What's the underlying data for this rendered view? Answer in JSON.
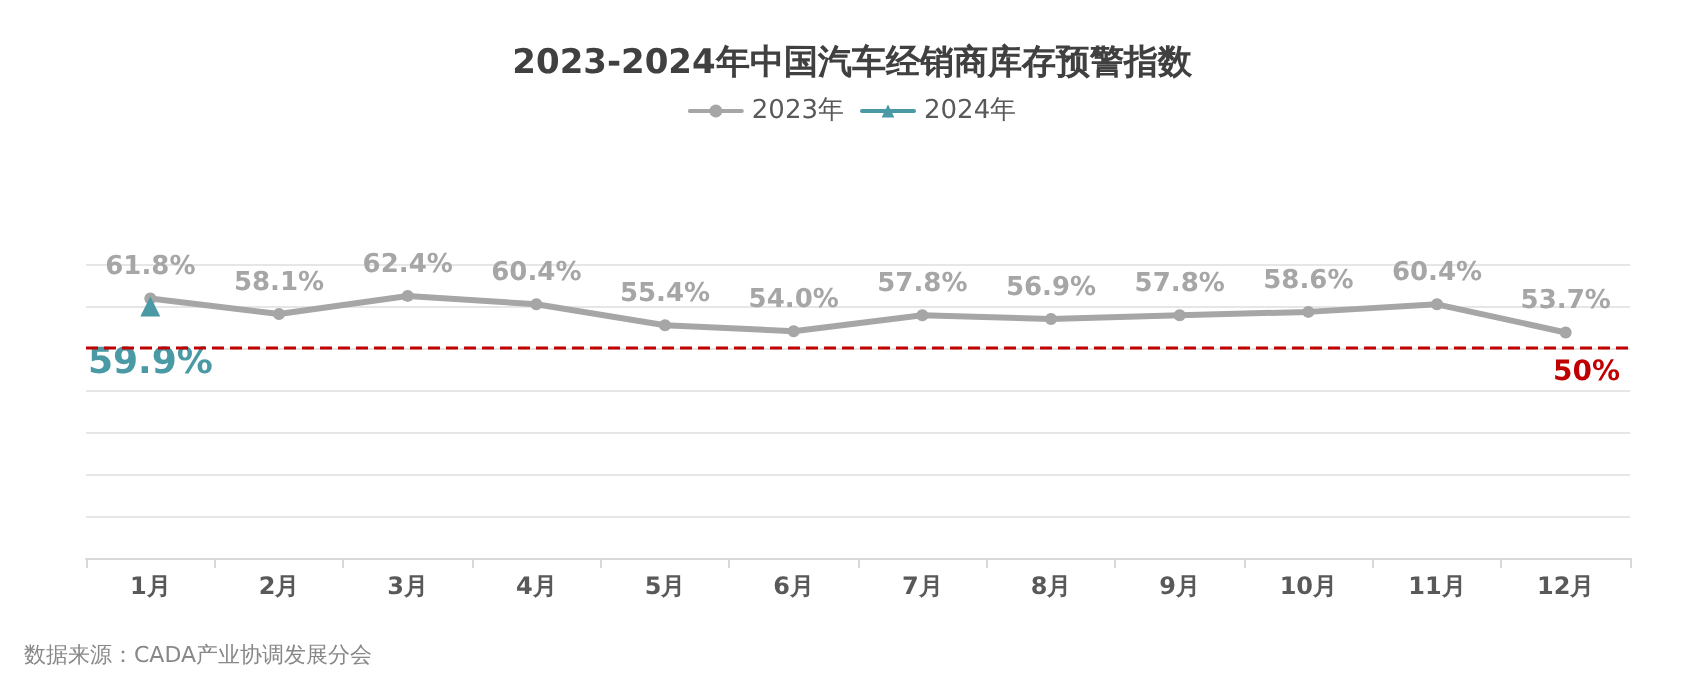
{
  "chart_data": {
    "type": "line",
    "title": "2023-2024年中国汽车经销商库存预警指数",
    "categories": [
      "1月",
      "2月",
      "3月",
      "4月",
      "5月",
      "6月",
      "7月",
      "8月",
      "9月",
      "10月",
      "11月",
      "12月"
    ],
    "series": [
      {
        "name": "2023年",
        "color": "#a6a6a6",
        "marker": "circle",
        "values": [
          61.8,
          58.1,
          62.4,
          60.4,
          55.4,
          54.0,
          57.8,
          56.9,
          57.8,
          58.6,
          60.4,
          53.7
        ],
        "value_labels": [
          "61.8%",
          "58.1%",
          "62.4%",
          "60.4%",
          "55.4%",
          "54.0%",
          "57.8%",
          "56.9%",
          "57.8%",
          "58.6%",
          "60.4%",
          "53.7%"
        ]
      },
      {
        "name": "2024年",
        "color": "#4a9aa5",
        "marker": "triangle",
        "values": [
          59.9,
          null,
          null,
          null,
          null,
          null,
          null,
          null,
          null,
          null,
          null,
          null
        ],
        "value_labels": [
          "59.9%",
          null,
          null,
          null,
          null,
          null,
          null,
          null,
          null,
          null,
          null,
          null
        ]
      }
    ],
    "ylim": [
      0,
      70
    ],
    "yticks": [
      {
        "value": 0,
        "label": null
      },
      {
        "value": 10,
        "label": null
      },
      {
        "value": 20,
        "label": null
      },
      {
        "value": 30,
        "label": null
      },
      {
        "value": 40,
        "label": null
      },
      {
        "value": 50,
        "label": null
      },
      {
        "value": 60,
        "label": null
      },
      {
        "value": 70,
        "label": null
      }
    ],
    "tick_labels": "x",
    "grid": "y",
    "legend": "top",
    "ref_lines": [
      {
        "axis": "y",
        "value": 50,
        "label": "50%",
        "color": "#c00000",
        "line_style": "dashed"
      }
    ],
    "annotations": [
      "数据来源：CADA产业协调发展分会"
    ]
  }
}
